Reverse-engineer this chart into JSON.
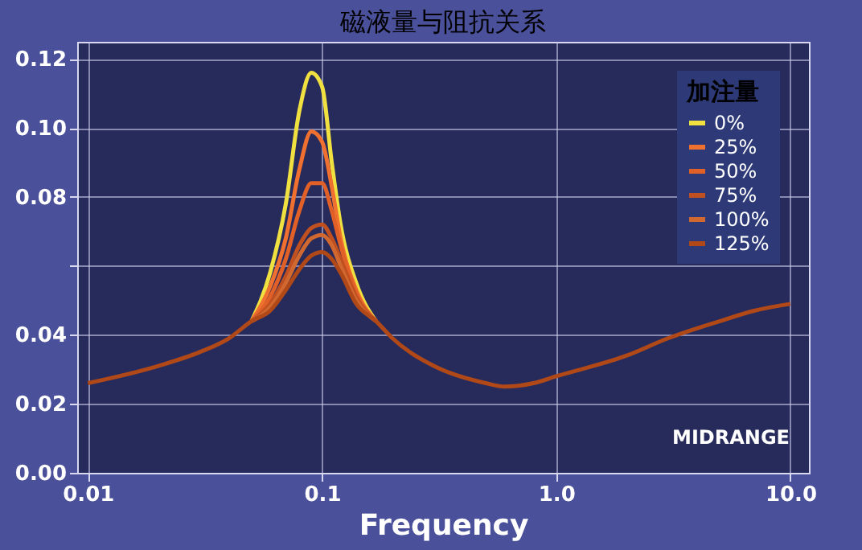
{
  "chart_data": {
    "type": "line",
    "title": "磁液量与阻抗关系",
    "xlabel": "Frequency",
    "legend_title": "加注量",
    "legend": "top right",
    "log": "x",
    "grid": true,
    "line_style": "solid",
    "marker": "none",
    "xlim": [
      0.009,
      12
    ],
    "xticks": [
      0.01,
      0.1,
      {
        "value": 1,
        "label": "1.0"
      },
      {
        "value": 10,
        "label": "10.0"
      }
    ],
    "ylim": [
      0,
      0.125
    ],
    "yticks": [
      {
        "value": 0,
        "label": "0.00"
      },
      {
        "value": 0.02,
        "label": "0.02"
      },
      {
        "value": 0.04,
        "label": "0.04"
      },
      {
        "value": 0.06,
        "label": null
      },
      {
        "value": 0.08,
        "label": "0.08"
      },
      {
        "value": 0.1,
        "label": "0.10"
      },
      {
        "value": 0.12,
        "label": "0.12"
      }
    ],
    "x": [
      0.01,
      0.02,
      0.03,
      0.04,
      0.05,
      0.06,
      0.07,
      0.08,
      0.09,
      0.1,
      0.11,
      0.12,
      0.14,
      0.17,
      0.2,
      0.3,
      0.5,
      0.6,
      0.8,
      1,
      2,
      3,
      5,
      7,
      10
    ],
    "series": [
      {
        "name": "0%",
        "color": "#f0e040",
        "values": [
          null,
          null,
          null,
          null,
          0.044,
          0.058,
          0.078,
          0.105,
          0.116,
          0.112,
          0.09,
          0.072,
          0.055,
          0.044,
          null,
          null,
          null,
          null,
          null,
          null,
          null,
          null,
          null,
          null,
          null
        ]
      },
      {
        "name": "25%",
        "color": "#f07030",
        "values": [
          null,
          null,
          null,
          null,
          0.044,
          0.054,
          0.068,
          0.088,
          0.099,
          0.096,
          0.083,
          0.068,
          0.053,
          0.044,
          null,
          null,
          null,
          null,
          null,
          null,
          null,
          null,
          null,
          null,
          null
        ]
      },
      {
        "name": "50%",
        "color": "#e06028",
        "values": [
          null,
          null,
          null,
          null,
          0.044,
          0.051,
          0.062,
          0.076,
          0.084,
          0.084,
          0.076,
          0.066,
          0.052,
          0.044,
          null,
          null,
          null,
          null,
          null,
          null,
          null,
          null,
          null,
          null,
          null
        ]
      },
      {
        "name": "75%",
        "color": "#c05020",
        "values": [
          null,
          null,
          null,
          null,
          0.044,
          0.049,
          0.057,
          0.066,
          0.071,
          0.072,
          0.068,
          0.062,
          0.051,
          0.044,
          null,
          null,
          null,
          null,
          null,
          null,
          null,
          null,
          null,
          null,
          null
        ]
      },
      {
        "name": "100%",
        "color": "#d06830",
        "values": [
          null,
          null,
          null,
          null,
          0.044,
          0.048,
          0.055,
          0.063,
          0.068,
          0.069,
          0.066,
          0.06,
          0.05,
          0.044,
          null,
          null,
          null,
          null,
          null,
          null,
          null,
          null,
          null,
          null,
          null
        ]
      },
      {
        "name": "125%",
        "color": "#b04818",
        "values": [
          0.026,
          0.031,
          0.035,
          0.039,
          0.044,
          0.047,
          0.053,
          0.059,
          0.063,
          0.064,
          0.062,
          0.058,
          0.049,
          0.044,
          0.039,
          0.031,
          0.026,
          0.025,
          0.026,
          0.028,
          0.034,
          0.039,
          0.044,
          0.047,
          0.049
        ]
      }
    ],
    "annotations": [
      "MIDRANGE"
    ]
  }
}
